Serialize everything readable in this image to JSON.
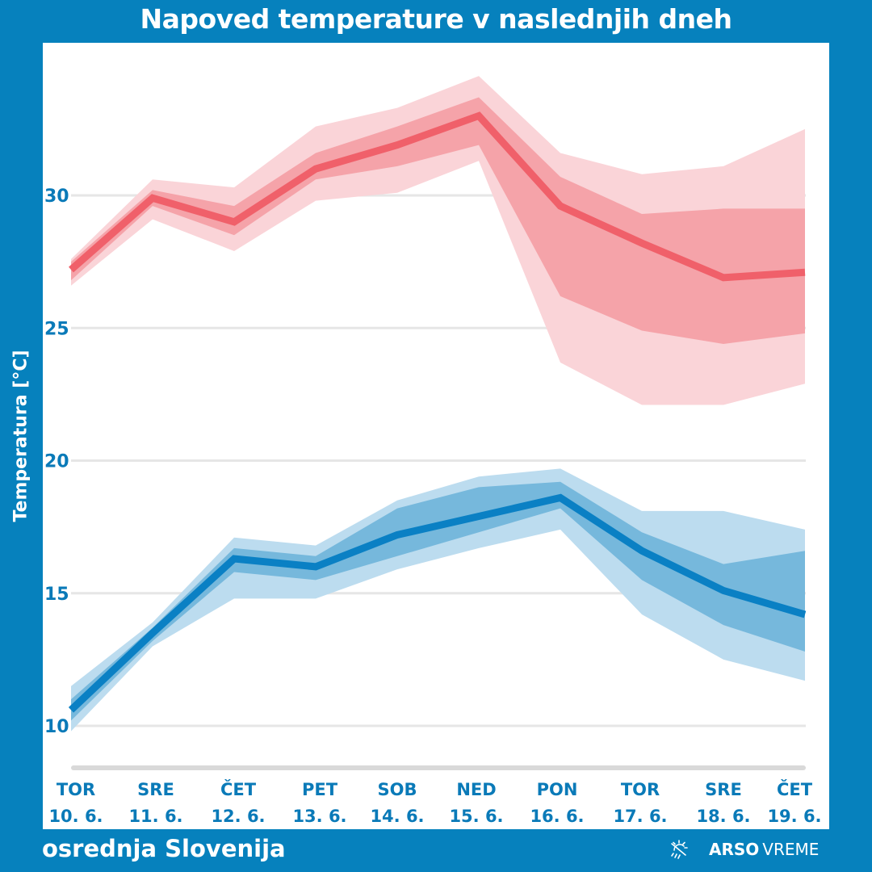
{
  "title": "Napoved temperature v naslednjih dneh",
  "region": "osrednja Slovenija",
  "brand": {
    "icon": "sun-rain-icon",
    "name_bold": "ARSO",
    "name_light": "VREME"
  },
  "colors": {
    "background": "#0681bd",
    "axis_text": "#0a7ab8",
    "max_line": "#f0606a",
    "max_inner": "#f5a3a9",
    "max_outer": "#fad4d8",
    "min_line": "#0a80c4",
    "min_inner": "#76b8dc",
    "min_outer": "#bcdcef",
    "grid": "#e6e6e6"
  },
  "chart_data": {
    "type": "line",
    "title": "Napoved temperature v naslednjih dneh",
    "xlabel": "",
    "ylabel": "Temperatura [°C]",
    "ylim": [
      8.5,
      35.2
    ],
    "yticks": [
      10,
      15,
      20,
      25,
      30
    ],
    "grid": true,
    "legend": "none",
    "categories": [
      {
        "day": "TOR",
        "date": "10. 6."
      },
      {
        "day": "SRE",
        "date": "11. 6."
      },
      {
        "day": "ČET",
        "date": "12. 6."
      },
      {
        "day": "PET",
        "date": "13. 6."
      },
      {
        "day": "SOB",
        "date": "14. 6."
      },
      {
        "day": "NED",
        "date": "15. 6."
      },
      {
        "day": "PON",
        "date": "16. 6."
      },
      {
        "day": "TOR",
        "date": "17. 6."
      },
      {
        "day": "SRE",
        "date": "18. 6."
      },
      {
        "day": "ČET",
        "date": "19. 6."
      }
    ],
    "series": [
      {
        "name": "max",
        "values": [
          27.2,
          29.9,
          29.0,
          31.0,
          31.9,
          33.0,
          29.6,
          28.2,
          26.9,
          27.1
        ],
        "inner_upper": [
          27.5,
          30.2,
          29.6,
          31.6,
          32.6,
          33.7,
          30.7,
          29.3,
          29.5,
          29.5
        ],
        "inner_lower": [
          26.8,
          29.6,
          28.5,
          30.6,
          31.1,
          31.9,
          26.2,
          24.9,
          24.4,
          24.8
        ],
        "outer_upper": [
          27.6,
          30.6,
          30.3,
          32.6,
          33.3,
          34.5,
          31.6,
          30.8,
          31.1,
          32.5
        ],
        "outer_lower": [
          26.6,
          29.1,
          27.9,
          29.8,
          30.1,
          31.3,
          23.7,
          22.1,
          22.1,
          22.9
        ]
      },
      {
        "name": "min",
        "values": [
          10.6,
          13.5,
          16.3,
          16.0,
          17.2,
          17.9,
          18.6,
          16.6,
          15.1,
          14.2
        ],
        "inner_upper": [
          11.0,
          13.7,
          16.7,
          16.4,
          18.2,
          19.0,
          19.2,
          17.3,
          16.1,
          16.6
        ],
        "inner_lower": [
          10.2,
          13.2,
          15.8,
          15.5,
          16.4,
          17.3,
          18.2,
          15.5,
          13.8,
          12.8
        ],
        "outer_upper": [
          11.5,
          13.9,
          17.1,
          16.8,
          18.5,
          19.4,
          19.7,
          18.1,
          18.1,
          17.4
        ],
        "outer_lower": [
          9.8,
          13.0,
          14.8,
          14.8,
          15.9,
          16.7,
          17.4,
          14.2,
          12.5,
          11.7
        ]
      }
    ]
  }
}
